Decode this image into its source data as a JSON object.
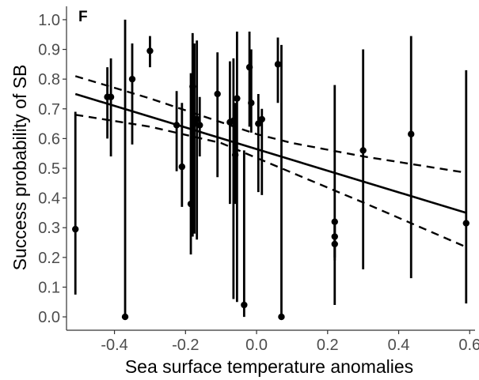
{
  "chart_data": {
    "type": "scatter",
    "panel_label": "F",
    "xlabel": "Sea surface temperature anomalies",
    "ylabel": "Success probability of SB",
    "xlim": [
      -0.535,
      0.615
    ],
    "ylim": [
      -0.045,
      1.045
    ],
    "x_ticks": [
      -0.4,
      -0.2,
      0.0,
      0.2,
      0.4,
      0.6
    ],
    "x_tick_labels": [
      "-0.4",
      "-0.2",
      "0.0",
      "0.2",
      "0.4",
      "0.6"
    ],
    "y_ticks": [
      0.0,
      0.1,
      0.2,
      0.3,
      0.4,
      0.5,
      0.6,
      0.7,
      0.8,
      0.9,
      1.0
    ],
    "y_tick_labels": [
      "0.0",
      "0.1",
      "0.2",
      "0.3",
      "0.4",
      "0.5",
      "0.6",
      "0.7",
      "0.8",
      "0.9",
      "1.0"
    ],
    "grid": false,
    "legend": "none",
    "colors": {
      "marks": "#000000",
      "axis": "#333333",
      "tick_text": "#4d4d4d"
    },
    "points": [
      {
        "x": -0.51,
        "y": 0.295,
        "lo": 0.075,
        "hi": 0.69
      },
      {
        "x": -0.42,
        "y": 0.74,
        "lo": 0.6,
        "hi": 0.84
      },
      {
        "x": -0.41,
        "y": 0.74,
        "lo": 0.54,
        "hi": 0.87
      },
      {
        "x": -0.35,
        "y": 0.8,
        "lo": 0.58,
        "hi": 0.92
      },
      {
        "x": -0.37,
        "y": 0.0,
        "lo": 0.0,
        "hi": 1.0
      },
      {
        "x": -0.3,
        "y": 0.895,
        "lo": 0.84,
        "hi": 0.945
      },
      {
        "x": -0.225,
        "y": 0.645,
        "lo": 0.49,
        "hi": 0.76
      },
      {
        "x": -0.21,
        "y": 0.505,
        "lo": 0.37,
        "hi": 0.72
      },
      {
        "x": -0.185,
        "y": 0.38,
        "lo": 0.21,
        "hi": 0.82
      },
      {
        "x": -0.18,
        "y": 0.775,
        "lo": 0.27,
        "hi": 0.955
      },
      {
        "x": -0.175,
        "y": 0.65,
        "lo": 0.28,
        "hi": 0.92
      },
      {
        "x": -0.168,
        "y": 0.665,
        "lo": 0.26,
        "hi": 0.93
      },
      {
        "x": -0.16,
        "y": 0.645,
        "lo": 0.54,
        "hi": 0.74
      },
      {
        "x": -0.11,
        "y": 0.75,
        "lo": 0.47,
        "hi": 0.89
      },
      {
        "x": -0.075,
        "y": 0.655,
        "lo": 0.38,
        "hi": 0.86
      },
      {
        "x": -0.065,
        "y": 0.66,
        "lo": 0.06,
        "hi": 0.87
      },
      {
        "x": -0.06,
        "y": 0.545,
        "lo": 0.38,
        "hi": 0.72
      },
      {
        "x": -0.055,
        "y": 0.735,
        "lo": 0.05,
        "hi": 0.96
      },
      {
        "x": -0.035,
        "y": 0.04,
        "lo": 0.0,
        "hi": 0.56
      },
      {
        "x": -0.02,
        "y": 0.84,
        "lo": 0.64,
        "hi": 0.96
      },
      {
        "x": -0.015,
        "y": 0.72,
        "lo": 0.62,
        "hi": 0.9
      },
      {
        "x": 0.005,
        "y": 0.65,
        "lo": 0.42,
        "hi": 0.75
      },
      {
        "x": 0.015,
        "y": 0.665,
        "lo": 0.41,
        "hi": 0.7
      },
      {
        "x": 0.06,
        "y": 0.85,
        "lo": 0.72,
        "hi": 0.94
      },
      {
        "x": 0.07,
        "y": 0.0,
        "lo": 0.0,
        "hi": 0.915
      },
      {
        "x": 0.22,
        "y": 0.32,
        "lo": 0.04,
        "hi": 0.78
      },
      {
        "x": 0.22,
        "y": 0.27,
        "lo": 0.2,
        "hi": 0.33
      },
      {
        "x": 0.22,
        "y": 0.245,
        "lo": 0.19,
        "hi": 0.31
      },
      {
        "x": 0.3,
        "y": 0.56,
        "lo": 0.16,
        "hi": 0.9
      },
      {
        "x": 0.435,
        "y": 0.615,
        "lo": 0.13,
        "hi": 0.945
      },
      {
        "x": 0.59,
        "y": 0.315,
        "lo": 0.045,
        "hi": 0.83
      }
    ],
    "fit_line": {
      "x": [
        -0.51,
        0.59
      ],
      "y": [
        0.75,
        0.35
      ]
    },
    "confidence_band": {
      "x": [
        -0.51,
        -0.3,
        -0.1,
        0.0,
        0.1,
        0.3,
        0.59
      ],
      "upper": [
        0.81,
        0.735,
        0.655,
        0.615,
        0.585,
        0.54,
        0.485
      ],
      "lower": [
        0.68,
        0.64,
        0.585,
        0.535,
        0.485,
        0.385,
        0.235
      ]
    }
  }
}
